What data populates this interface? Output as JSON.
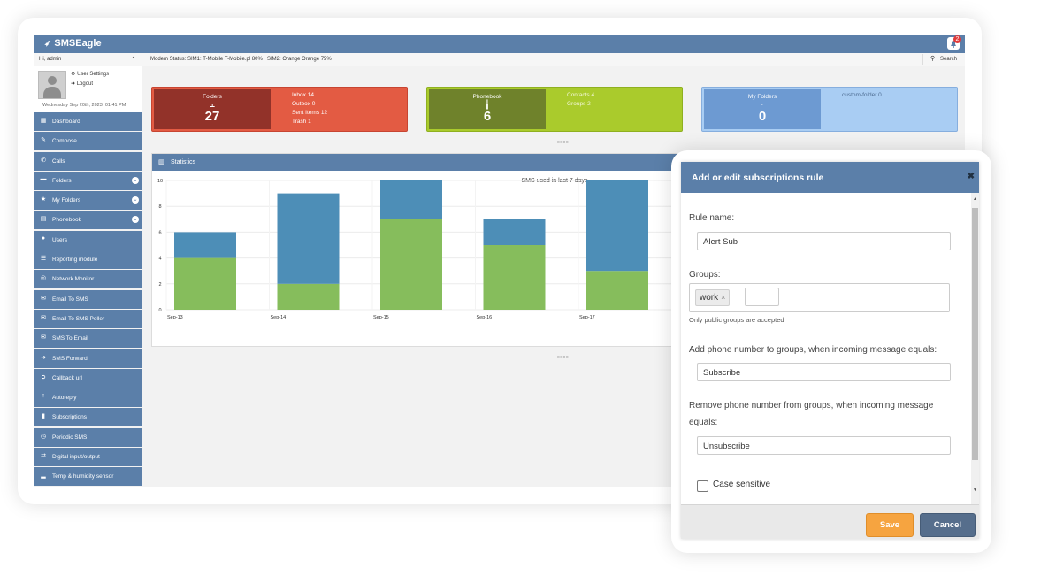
{
  "app": {
    "brand": "SMSEagle",
    "notifications": "2",
    "greeting": "Hi, admin",
    "modem_status": "Modem Status:  SIM1: T-Mobile T-Mobile.pl 80%",
    "sim2_status": "SIM2: Orange Orange 75%",
    "search_label": "Search",
    "user_settings": "User Settings",
    "logout": "Logout",
    "date": "Wednesday Sep 20th, 2023, 01:41 PM"
  },
  "sidebar": {
    "items": [
      {
        "label": "Dashboard",
        "icon": "dashboard-icon",
        "glyph": "▦"
      },
      {
        "label": "Compose",
        "icon": "pencil-icon",
        "glyph": "✎"
      },
      {
        "label": "Calls",
        "icon": "phone-icon",
        "glyph": "✆"
      },
      {
        "label": "Folders",
        "icon": "folder-icon",
        "glyph": "▬"
      },
      {
        "label": "My Folders",
        "icon": "star-icon",
        "glyph": "★"
      },
      {
        "label": "Phonebook",
        "icon": "book-icon",
        "glyph": "▤"
      },
      {
        "label": "Users",
        "icon": "users-icon",
        "glyph": "●"
      },
      {
        "label": "Reporting module",
        "icon": "list-icon",
        "glyph": "☰"
      },
      {
        "label": "Network Monitor",
        "icon": "target-icon",
        "glyph": "◎"
      },
      {
        "label": "Email To SMS",
        "icon": "envelope-icon",
        "glyph": "✉"
      },
      {
        "label": "Email To SMS Poller",
        "icon": "envelope-icon",
        "glyph": "✉"
      },
      {
        "label": "SMS To Email",
        "icon": "envelope-icon",
        "glyph": "✉"
      },
      {
        "label": "SMS Forward",
        "icon": "arrow-right-icon",
        "glyph": "➜"
      },
      {
        "label": "Callback url",
        "icon": "circle-arrow-icon",
        "glyph": "➲"
      },
      {
        "label": "Autoreply",
        "icon": "arrow-up-icon",
        "glyph": "↑"
      },
      {
        "label": "Subscriptions",
        "icon": "bookmark-icon",
        "glyph": "▮"
      },
      {
        "label": "Periodic SMS",
        "icon": "clock-icon",
        "glyph": "◷"
      },
      {
        "label": "Digital input/output",
        "icon": "refresh-icon",
        "glyph": "⇄"
      },
      {
        "label": "Temp & humidity sensor",
        "icon": "bar-chart-icon",
        "glyph": "▂"
      }
    ]
  },
  "tiles": {
    "folders": {
      "title": "Folders",
      "count": "27",
      "lines": [
        "Inbox 14",
        "Outbox 0",
        "Sent Items 12",
        "Trash 1"
      ]
    },
    "phonebook": {
      "title": "Phonebook",
      "count": "6",
      "lines": [
        "Contacts 4",
        "Groups 2"
      ]
    },
    "myfolders": {
      "title": "My Folders",
      "count": "0",
      "lines": [
        "custom-folder 0"
      ]
    }
  },
  "stats": {
    "header": "Statistics"
  },
  "chart_data": {
    "type": "bar",
    "title": "SMS used in last 7 days",
    "categories": [
      "Sep-13",
      "Sep-14",
      "Sep-15",
      "Sep-16",
      "Sep-17"
    ],
    "series": [
      {
        "values": [
          4,
          2,
          7,
          5,
          3
        ],
        "color": "#86bd5c"
      },
      {
        "values": [
          2,
          7,
          3,
          2,
          7
        ],
        "color": "#4d8eb7"
      }
    ],
    "ylim": [
      0,
      10
    ],
    "yticks": [
      0,
      2,
      4,
      6,
      8,
      10
    ],
    "clipped_label": "Sep",
    "stacked": true
  },
  "modal": {
    "title": "Add or edit subscriptions rule",
    "close": "✖",
    "rule_name_label": "Rule name:",
    "rule_name_value": "Alert Sub",
    "groups_label": "Groups:",
    "group_tag": "work",
    "tag_remove": "×",
    "groups_hint": "Only public groups are accepted",
    "add_label": "Add phone number to groups, when incoming message equals:",
    "add_value": "Subscribe",
    "remove_label": "Remove phone number from groups, when incoming message equals:",
    "remove_value": "Unsubscribe",
    "case_label": "Case sensitive",
    "save": "Save",
    "cancel": "Cancel"
  }
}
